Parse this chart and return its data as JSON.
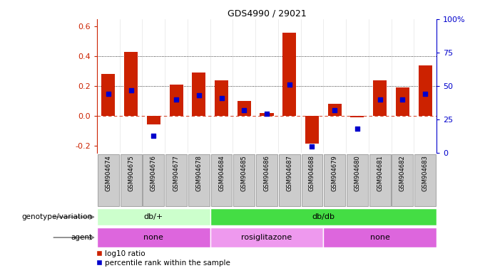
{
  "title": "GDS4990 / 29021",
  "samples": [
    "GSM904674",
    "GSM904675",
    "GSM904676",
    "GSM904677",
    "GSM904678",
    "GSM904684",
    "GSM904685",
    "GSM904686",
    "GSM904687",
    "GSM904688",
    "GSM904679",
    "GSM904680",
    "GSM904681",
    "GSM904682",
    "GSM904683"
  ],
  "log10_ratio": [
    0.28,
    0.43,
    -0.06,
    0.21,
    0.29,
    0.24,
    0.1,
    0.02,
    0.56,
    -0.19,
    0.08,
    -0.01,
    0.24,
    0.19,
    0.34
  ],
  "percentile_rank": [
    44,
    47,
    13,
    40,
    43,
    41,
    32,
    29,
    51,
    5,
    32,
    18,
    40,
    40,
    44
  ],
  "bar_color": "#cc2200",
  "dot_color": "#0000cc",
  "ylim_left": [
    -0.25,
    0.65
  ],
  "ylim_right": [
    0,
    100
  ],
  "yticks_left": [
    -0.2,
    0.0,
    0.2,
    0.4,
    0.6
  ],
  "yticks_right": [
    0,
    25,
    50,
    75,
    100
  ],
  "yticklabels_right": [
    "0",
    "25",
    "50",
    "75",
    "100%"
  ],
  "hlines_dotted": [
    0.2,
    0.4
  ],
  "hline_zero_color": "#cc2200",
  "genotype_groups": [
    {
      "label": "db/+",
      "start": 0,
      "end": 5,
      "color": "#ccffcc"
    },
    {
      "label": "db/db",
      "start": 5,
      "end": 15,
      "color": "#44dd44"
    }
  ],
  "agent_groups": [
    {
      "label": "none",
      "start": 0,
      "end": 5,
      "color": "#dd66dd"
    },
    {
      "label": "rosiglitazone",
      "start": 5,
      "end": 10,
      "color": "#ee99ee"
    },
    {
      "label": "none",
      "start": 10,
      "end": 15,
      "color": "#dd66dd"
    }
  ],
  "legend_bar_label": "log10 ratio",
  "legend_dot_label": "percentile rank within the sample",
  "background_color": "#ffffff",
  "plot_bg_color": "#ffffff",
  "genotype_label": "genotype/variation",
  "agent_label": "agent",
  "sample_box_color": "#cccccc",
  "sample_box_edge": "#888888"
}
